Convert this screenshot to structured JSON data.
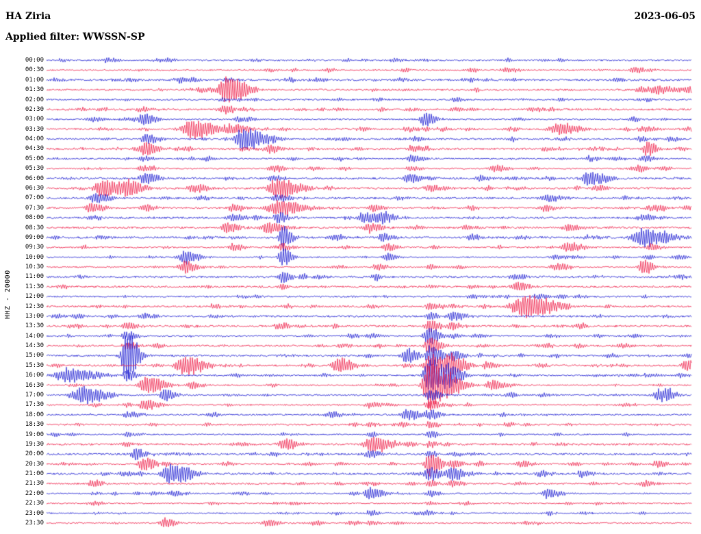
{
  "header": {
    "station": "HA Ziria",
    "date": "2023-06-05",
    "filter_label": "Applied filter: WWSSN-SP"
  },
  "y_axis_label": "HHZ - 20000",
  "colors": {
    "red": "#ee1440",
    "blue": "#1212cf",
    "background": "#ffffff",
    "text": "#000000"
  },
  "chart_data": {
    "type": "line",
    "subtype": "helicorder-seismogram",
    "title": "HA Ziria",
    "date": "2023-06-05",
    "filter": "WWSSN-SP",
    "channel_scale_label": "HHZ - 20000",
    "minutes_per_row": 30,
    "rows": 48,
    "row_color_pattern": [
      "blue",
      "red"
    ],
    "row_labels": [
      "00:00",
      "00:30",
      "01:00",
      "01:30",
      "02:00",
      "02:30",
      "03:00",
      "03:30",
      "04:00",
      "04:30",
      "05:00",
      "05:30",
      "06:00",
      "06:30",
      "07:00",
      "07:30",
      "08:00",
      "08:30",
      "09:00",
      "09:30",
      "10:00",
      "10:30",
      "11:00",
      "11:30",
      "12:00",
      "12:30",
      "13:00",
      "13:30",
      "14:00",
      "14:30",
      "15:00",
      "15:30",
      "16:00",
      "16:30",
      "17:00",
      "17:30",
      "18:00",
      "18:30",
      "19:00",
      "19:30",
      "20:00",
      "20:30",
      "21:00",
      "21:30",
      "22:00",
      "22:30",
      "23:00",
      "23:30"
    ],
    "events_format": "[rowIndex, xFractionOfTrace, peakAmplitudePx, envelopeSigmaPx]",
    "events": [
      [
        0,
        0.092,
        4,
        5
      ],
      [
        1,
        0.713,
        4,
        6
      ],
      [
        1,
        0.915,
        6,
        8
      ],
      [
        2,
        0.545,
        3,
        6
      ],
      [
        2,
        0.28,
        3,
        5
      ],
      [
        3,
        0.28,
        22,
        9
      ],
      [
        3,
        0.953,
        7,
        12
      ],
      [
        3,
        0.24,
        4,
        6
      ],
      [
        4,
        0.3,
        2.5,
        6
      ],
      [
        5,
        0.278,
        8,
        8
      ],
      [
        5,
        0.145,
        4,
        6
      ],
      [
        5,
        0.565,
        3,
        6
      ],
      [
        6,
        0.151,
        10,
        6
      ],
      [
        6,
        0.586,
        12,
        5
      ],
      [
        6,
        0.071,
        4,
        6
      ],
      [
        6,
        0.3,
        5,
        7
      ],
      [
        7,
        0.225,
        16,
        10
      ],
      [
        7,
        0.28,
        8,
        7
      ],
      [
        7,
        0.793,
        10,
        9
      ],
      [
        7,
        0.3,
        6,
        6
      ],
      [
        7,
        0.56,
        4,
        6
      ],
      [
        8,
        0.305,
        18,
        10
      ],
      [
        8,
        0.156,
        8,
        6
      ],
      [
        8,
        0.342,
        7,
        6
      ],
      [
        8,
        0.926,
        4,
        6
      ],
      [
        8,
        0.566,
        4,
        5
      ],
      [
        9,
        0.153,
        12,
        6
      ],
      [
        9,
        0.347,
        6,
        6
      ],
      [
        9,
        0.777,
        4,
        6
      ],
      [
        9,
        0.931,
        14,
        4
      ],
      [
        9,
        0.566,
        5,
        5
      ],
      [
        10,
        0.565,
        6,
        6
      ],
      [
        10,
        0.843,
        5,
        6
      ],
      [
        10,
        0.926,
        6,
        5
      ],
      [
        10,
        0.15,
        4,
        5
      ],
      [
        11,
        0.352,
        6,
        6
      ],
      [
        11,
        0.694,
        6,
        6
      ],
      [
        11,
        0.149,
        5,
        5
      ],
      [
        11,
        0.565,
        4,
        5
      ],
      [
        12,
        0.153,
        10,
        6
      ],
      [
        12,
        0.563,
        8,
        6
      ],
      [
        12,
        0.843,
        12,
        8
      ],
      [
        12,
        0.671,
        4,
        5
      ],
      [
        12,
        0.35,
        5,
        5
      ],
      [
        13,
        0.087,
        14,
        10
      ],
      [
        13,
        0.124,
        12,
        8
      ],
      [
        13,
        0.228,
        8,
        6
      ],
      [
        13,
        0.358,
        16,
        10
      ],
      [
        13,
        0.594,
        6,
        6
      ],
      [
        13,
        0.851,
        5,
        6
      ],
      [
        14,
        0.076,
        8,
        7
      ],
      [
        14,
        0.358,
        6,
        6
      ],
      [
        14,
        0.777,
        6,
        7
      ],
      [
        14,
        0.543,
        4,
        5
      ],
      [
        15,
        0.069,
        8,
        6
      ],
      [
        15,
        0.153,
        6,
        5
      ],
      [
        15,
        0.289,
        6,
        6
      ],
      [
        15,
        0.361,
        12,
        11
      ],
      [
        15,
        0.506,
        5,
        5
      ],
      [
        15,
        0.772,
        5,
        6
      ],
      [
        15,
        0.936,
        4,
        5
      ],
      [
        16,
        0.289,
        6,
        6
      ],
      [
        16,
        0.361,
        10,
        6
      ],
      [
        16,
        0.493,
        10,
        7
      ],
      [
        16,
        0.522,
        8,
        6
      ],
      [
        16,
        0.926,
        5,
        6
      ],
      [
        17,
        0.278,
        8,
        6
      ],
      [
        17,
        0.344,
        10,
        7
      ],
      [
        17,
        0.501,
        8,
        6
      ],
      [
        17,
        0.809,
        6,
        6
      ],
      [
        17,
        0.65,
        4,
        5
      ],
      [
        18,
        0.366,
        20,
        4
      ],
      [
        18,
        0.522,
        6,
        6
      ],
      [
        18,
        0.66,
        6,
        5
      ],
      [
        18,
        0.926,
        14,
        12
      ],
      [
        19,
        0.289,
        6,
        5
      ],
      [
        19,
        0.528,
        6,
        5
      ],
      [
        19,
        0.809,
        8,
        7
      ],
      [
        19,
        0.936,
        6,
        5
      ],
      [
        19,
        0.366,
        8,
        4
      ],
      [
        20,
        0.214,
        10,
        7
      ],
      [
        20,
        0.366,
        16,
        4
      ],
      [
        20,
        0.528,
        4,
        5
      ],
      [
        20,
        0.788,
        4,
        5
      ],
      [
        21,
        0.218,
        8,
        6
      ],
      [
        21,
        0.512,
        5,
        5
      ],
      [
        21,
        0.79,
        6,
        6
      ],
      [
        21,
        0.926,
        12,
        5
      ],
      [
        21,
        0.594,
        4,
        4
      ],
      [
        22,
        0.366,
        10,
        4
      ],
      [
        22,
        0.724,
        5,
        5
      ],
      [
        23,
        0.729,
        8,
        6
      ],
      [
        23,
        0.366,
        5,
        4
      ],
      [
        23,
        0.594,
        3,
        4
      ],
      [
        24,
        0.66,
        3,
        5
      ],
      [
        24,
        0.3,
        2.5,
        5
      ],
      [
        25,
        0.74,
        18,
        14
      ],
      [
        25,
        0.257,
        4,
        5
      ],
      [
        25,
        0.594,
        6,
        4
      ],
      [
        25,
        0.501,
        3,
        4
      ],
      [
        26,
        0.594,
        8,
        4
      ],
      [
        26,
        0.628,
        8,
        6
      ],
      [
        26,
        0.257,
        3,
        5
      ],
      [
        26,
        0.151,
        3,
        4
      ],
      [
        27,
        0.124,
        6,
        5
      ],
      [
        27,
        0.594,
        10,
        5
      ],
      [
        27,
        0.361,
        6,
        5
      ],
      [
        27,
        0.628,
        6,
        5
      ],
      [
        28,
        0.124,
        8,
        5
      ],
      [
        28,
        0.594,
        12,
        5
      ],
      [
        28,
        0.501,
        4,
        5
      ],
      [
        29,
        0.594,
        14,
        5
      ],
      [
        29,
        0.124,
        6,
        5
      ],
      [
        29,
        0.458,
        4,
        5
      ],
      [
        30,
        0.124,
        40,
        5
      ],
      [
        30,
        0.594,
        18,
        6
      ],
      [
        30,
        0.559,
        12,
        6
      ],
      [
        30,
        0.628,
        10,
        5
      ],
      [
        31,
        0.214,
        16,
        9
      ],
      [
        31,
        0.453,
        12,
        7
      ],
      [
        31,
        0.594,
        20,
        6
      ],
      [
        31,
        0.628,
        16,
        7
      ],
      [
        31,
        0.682,
        6,
        5
      ],
      [
        31,
        0.995,
        10,
        7
      ],
      [
        32,
        0.034,
        12,
        13
      ],
      [
        32,
        0.124,
        10,
        4
      ],
      [
        32,
        0.594,
        28,
        6
      ],
      [
        32,
        0.623,
        18,
        6
      ],
      [
        32,
        0.93,
        4,
        5
      ],
      [
        33,
        0.156,
        14,
        8
      ],
      [
        33,
        0.594,
        40,
        7
      ],
      [
        33,
        0.628,
        12,
        7
      ],
      [
        33,
        0.692,
        8,
        7
      ],
      [
        33,
        0.225,
        6,
        5
      ],
      [
        34,
        0.055,
        14,
        11
      ],
      [
        34,
        0.183,
        10,
        5
      ],
      [
        34,
        0.594,
        10,
        5
      ],
      [
        34,
        0.952,
        10,
        7
      ],
      [
        35,
        0.156,
        8,
        6
      ],
      [
        35,
        0.594,
        8,
        5
      ],
      [
        35,
        0.501,
        5,
        5
      ],
      [
        36,
        0.559,
        10,
        6
      ],
      [
        36,
        0.594,
        8,
        5
      ],
      [
        36,
        0.124,
        5,
        4
      ],
      [
        37,
        0.594,
        6,
        4
      ],
      [
        37,
        0.501,
        4,
        4
      ],
      [
        37,
        0.55,
        4,
        4
      ],
      [
        38,
        0.594,
        6,
        4
      ],
      [
        38,
        0.124,
        4,
        4
      ],
      [
        38,
        0.501,
        4,
        4
      ],
      [
        39,
        0.368,
        10,
        6
      ],
      [
        39,
        0.506,
        14,
        8
      ],
      [
        39,
        0.594,
        6,
        4
      ],
      [
        40,
        0.14,
        10,
        6
      ],
      [
        40,
        0.594,
        8,
        4
      ],
      [
        40,
        0.501,
        6,
        5
      ],
      [
        41,
        0.151,
        12,
        6
      ],
      [
        41,
        0.594,
        20,
        5
      ],
      [
        41,
        0.628,
        8,
        5
      ],
      [
        41,
        0.735,
        6,
        5
      ],
      [
        41,
        0.947,
        5,
        5
      ],
      [
        42,
        0.193,
        16,
        9
      ],
      [
        42,
        0.594,
        12,
        5
      ],
      [
        42,
        0.628,
        12,
        6
      ],
      [
        42,
        0.83,
        6,
        5
      ],
      [
        42,
        0.766,
        5,
        5
      ],
      [
        43,
        0.071,
        6,
        5
      ],
      [
        43,
        0.594,
        6,
        4
      ],
      [
        43,
        0.628,
        6,
        5
      ],
      [
        43,
        0.926,
        5,
        5
      ],
      [
        44,
        0.501,
        10,
        6
      ],
      [
        44,
        0.594,
        6,
        4
      ],
      [
        44,
        0.777,
        8,
        6
      ],
      [
        45,
        0.594,
        4,
        4
      ],
      [
        45,
        0.257,
        3,
        4
      ],
      [
        46,
        0.501,
        5,
        4
      ],
      [
        46,
        0.594,
        4,
        4
      ],
      [
        47,
        0.183,
        8,
        5
      ],
      [
        47,
        0.342,
        6,
        5
      ],
      [
        47,
        0.501,
        4,
        4
      ]
    ]
  }
}
